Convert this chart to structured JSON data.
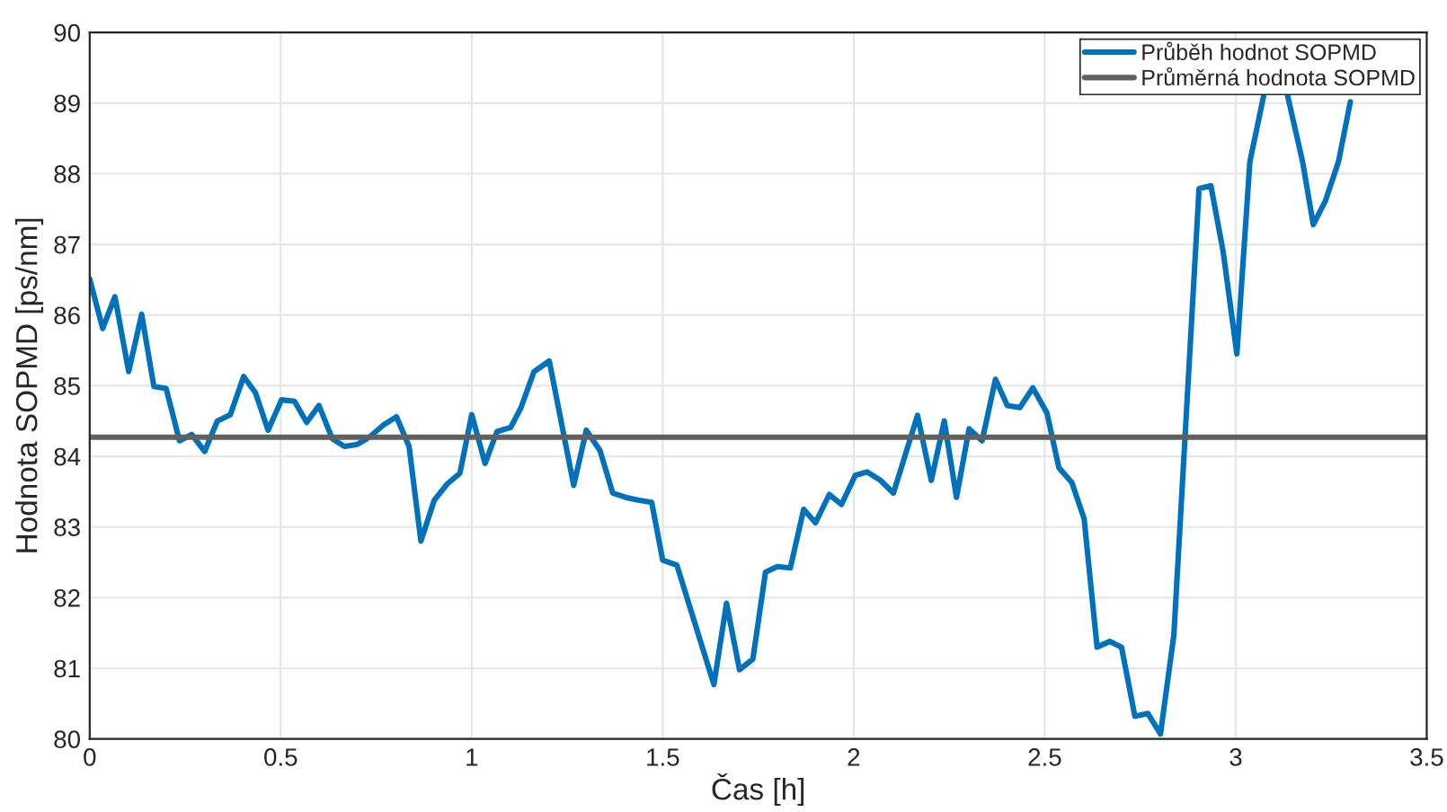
{
  "chart_data": {
    "type": "line",
    "xlabel": "Čas [h]",
    "ylabel": "Hodnota SOPMD [ps/nm]",
    "series": [
      {
        "name": "Průběh hodnot SOPMD",
        "color": "#0072bd",
        "x": [
          0.0,
          0.034,
          0.066,
          0.102,
          0.136,
          0.168,
          0.2,
          0.235,
          0.267,
          0.301,
          0.334,
          0.368,
          0.403,
          0.434,
          0.467,
          0.502,
          0.536,
          0.568,
          0.6,
          0.635,
          0.667,
          0.701,
          0.734,
          0.768,
          0.803,
          0.836,
          0.867,
          0.902,
          0.936,
          0.969,
          1.0,
          1.035,
          1.066,
          1.102,
          1.129,
          1.163,
          1.203,
          1.267,
          1.3,
          1.336,
          1.369,
          1.403,
          1.435,
          1.471,
          1.5,
          1.537,
          1.634,
          1.667,
          1.701,
          1.736,
          1.769,
          1.8,
          1.834,
          1.869,
          1.9,
          1.936,
          1.968,
          2.004,
          2.035,
          2.07,
          2.104,
          2.167,
          2.203,
          2.237,
          2.269,
          2.302,
          2.336,
          2.371,
          2.402,
          2.435,
          2.469,
          2.506,
          2.537,
          2.571,
          2.603,
          2.637,
          2.67,
          2.701,
          2.736,
          2.77,
          2.803,
          2.838,
          2.904,
          2.935,
          2.967,
          3.003,
          3.037,
          3.073,
          3.105,
          3.136,
          3.175,
          3.203,
          3.235,
          3.269,
          3.3
        ],
        "values": [
          86.51,
          85.81,
          86.26,
          85.2,
          86.01,
          84.99,
          84.96,
          84.22,
          84.31,
          84.07,
          84.5,
          84.59,
          85.13,
          84.9,
          84.37,
          84.8,
          84.78,
          84.48,
          84.72,
          84.25,
          84.14,
          84.17,
          84.28,
          84.44,
          84.56,
          84.14,
          82.8,
          83.38,
          83.61,
          83.76,
          84.59,
          83.9,
          84.35,
          84.41,
          84.69,
          85.2,
          85.35,
          83.59,
          84.37,
          84.08,
          83.48,
          83.42,
          83.38,
          83.35,
          82.53,
          82.46,
          80.77,
          81.92,
          80.98,
          81.13,
          82.36,
          82.44,
          82.42,
          83.25,
          83.06,
          83.46,
          83.32,
          83.73,
          83.78,
          83.66,
          83.48,
          84.58,
          83.66,
          84.5,
          83.42,
          84.39,
          84.22,
          85.09,
          84.72,
          84.69,
          84.97,
          84.61,
          83.84,
          83.63,
          83.12,
          81.3,
          81.38,
          81.3,
          80.32,
          80.36,
          80.07,
          81.47,
          87.79,
          87.83,
          86.9,
          85.45,
          88.17,
          89.1,
          null,
          89.1,
          88.17,
          87.28,
          87.62,
          88.17,
          89.02
        ]
      }
    ],
    "ref_lines": [
      {
        "axis": "y",
        "value": 84.27,
        "label": "Průměrná hodnota SOPMD",
        "color": "#606060"
      }
    ],
    "xlim": [
      0,
      3.5
    ],
    "xticks": [
      0,
      0.5,
      1,
      1.5,
      2,
      2.5,
      3,
      3.5
    ],
    "ylim": [
      80,
      90
    ],
    "yticks": [
      80,
      81,
      82,
      83,
      84,
      85,
      86,
      87,
      88,
      89,
      90
    ],
    "grid": true,
    "legend": "top right"
  }
}
